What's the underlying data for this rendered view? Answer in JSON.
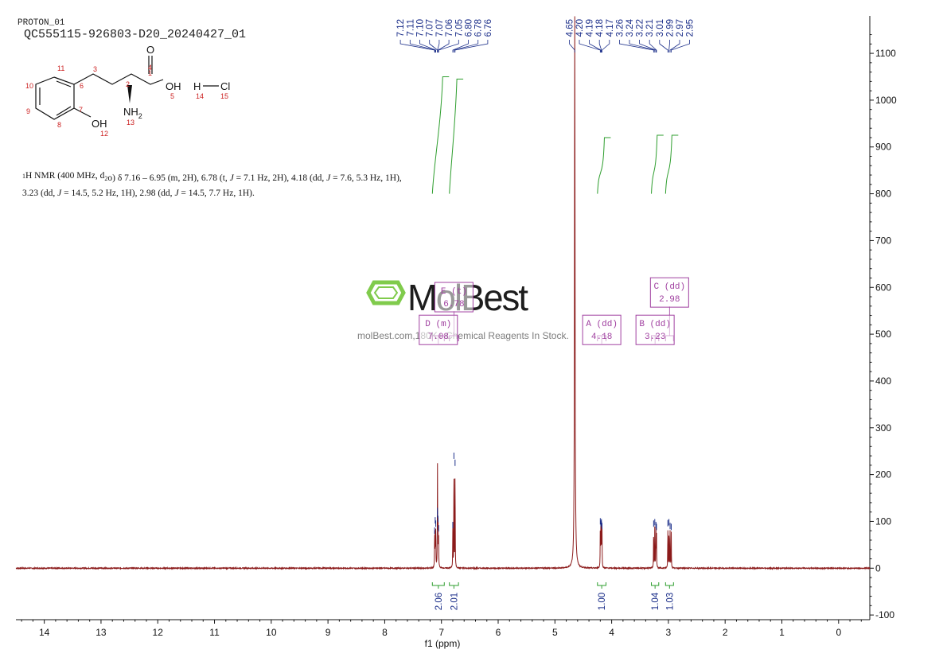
{
  "header": {
    "experiment": "PROTON_01",
    "sample_id": "QC555115-926803-D20_20240427_01"
  },
  "nmr_summary": {
    "nucleus_sup": "1",
    "parts": [
      {
        "t": "H NMR (400 MHz, d",
        "s": "normal"
      },
      {
        "t": "2",
        "s": "sub"
      },
      {
        "t": "o) δ 7.16 – 6.95 (m, 2H), 6.78 (t, ",
        "s": "normal"
      },
      {
        "t": "J",
        "s": "italic"
      },
      {
        "t": " = 7.1 Hz, 2H), 4.18 (dd, ",
        "s": "normal"
      },
      {
        "t": "J",
        "s": "italic"
      },
      {
        "t": " = 7.6, 5.3 Hz, 1H),",
        "s": "normal"
      }
    ],
    "parts2": [
      {
        "t": "3.23 (dd, ",
        "s": "normal"
      },
      {
        "t": "J",
        "s": "italic"
      },
      {
        "t": " = 14.5, 5.2 Hz, 1H), 2.98 (dd, ",
        "s": "normal"
      },
      {
        "t": "J",
        "s": "italic"
      },
      {
        "t": " = 14.5, 7.7 Hz, 1H).",
        "s": "normal"
      }
    ]
  },
  "structure": {
    "atom_numbers": [
      "1",
      "2",
      "3",
      "4",
      "5",
      "6",
      "7",
      "8",
      "9",
      "10",
      "11",
      "12",
      "13",
      "14",
      "15"
    ],
    "labels": {
      "O": "O",
      "OH_acid": "OH",
      "NH2": "NH",
      "NH2_sub": "2",
      "H": "H",
      "Cl": "Cl",
      "OH_phenol": "OH"
    }
  },
  "watermark": {
    "brand": "MolBest",
    "tagline": "molBest.com,180K+ Chemical Reagents In Stock."
  },
  "colors": {
    "spectrum": "#8b1a1a",
    "peak_labels": "#1c2f8a",
    "integrals": "#2e9e2e",
    "multiplets": "#a040a0",
    "atom_numbers": "#cc2222",
    "watermark_green": "#7ac943"
  },
  "chart_data": {
    "type": "line",
    "xlabel": "f1 (ppm)",
    "x_range": [
      14.5,
      -0.55
    ],
    "x_ticks": [
      14,
      13,
      12,
      11,
      10,
      9,
      8,
      7,
      6,
      5,
      4,
      3,
      2,
      1,
      0
    ],
    "y_range": [
      -110,
      1180
    ],
    "y_ticks": [
      -100,
      0,
      100,
      200,
      300,
      400,
      500,
      600,
      700,
      800,
      900,
      1000,
      1100
    ],
    "peak_labels_group1": [
      "7.12",
      "7.11",
      "7.10",
      "7.07",
      "7.07",
      "7.06",
      "7.05",
      "6.80",
      "6.78",
      "6.76"
    ],
    "peak_labels_group2": [
      "4.65",
      "4.20",
      "4.19",
      "4.18",
      "4.17",
      "3.26",
      "3.24",
      "3.22",
      "3.21",
      "3.01",
      "2.99",
      "2.97",
      "2.95"
    ],
    "peaks": [
      {
        "ppm": 7.12,
        "height": 70
      },
      {
        "ppm": 7.11,
        "height": 92
      },
      {
        "ppm": 7.1,
        "height": 85
      },
      {
        "ppm": 7.07,
        "height": 112
      },
      {
        "ppm": 7.07,
        "height": 105
      },
      {
        "ppm": 7.06,
        "height": 95
      },
      {
        "ppm": 7.05,
        "height": 75
      },
      {
        "ppm": 6.8,
        "height": 82
      },
      {
        "ppm": 6.78,
        "height": 230
      },
      {
        "ppm": 6.76,
        "height": 215
      },
      {
        "ppm": 4.65,
        "height": 1180
      },
      {
        "ppm": 4.2,
        "height": 90
      },
      {
        "ppm": 4.19,
        "height": 85
      },
      {
        "ppm": 4.18,
        "height": 88
      },
      {
        "ppm": 4.17,
        "height": 80
      },
      {
        "ppm": 3.26,
        "height": 85
      },
      {
        "ppm": 3.24,
        "height": 88
      },
      {
        "ppm": 3.22,
        "height": 82
      },
      {
        "ppm": 3.21,
        "height": 78
      },
      {
        "ppm": 3.01,
        "height": 86
      },
      {
        "ppm": 2.99,
        "height": 88
      },
      {
        "ppm": 2.97,
        "height": 80
      },
      {
        "ppm": 2.95,
        "height": 78
      }
    ],
    "integrals": [
      {
        "from": 7.16,
        "to": 6.95,
        "value": "2.06",
        "curve_bottom": 800,
        "curve_top": 1050
      },
      {
        "from": 6.86,
        "to": 6.7,
        "value": "2.01",
        "curve_bottom": 800,
        "curve_top": 1045
      },
      {
        "from": 4.25,
        "to": 4.1,
        "value": "1.00",
        "curve_bottom": 800,
        "curve_top": 920
      },
      {
        "from": 3.3,
        "to": 3.17,
        "value": "1.04",
        "curve_bottom": 800,
        "curve_top": 925
      },
      {
        "from": 3.05,
        "to": 2.91,
        "value": "1.03",
        "curve_bottom": 800,
        "curve_top": 925
      }
    ],
    "multiplets": [
      {
        "name": "A (dd)",
        "shift": "4.18",
        "from": 4.25,
        "to": 4.1,
        "label_level": 510
      },
      {
        "name": "B (dd)",
        "shift": "3.23",
        "from": 3.3,
        "to": 3.17,
        "label_level": 510
      },
      {
        "name": "C (dd)",
        "shift": "2.98",
        "from": 3.05,
        "to": 2.91,
        "label_level": 590
      },
      {
        "name": "D (m)",
        "shift": "7.08",
        "from": 7.16,
        "to": 6.95,
        "label_level": 510
      },
      {
        "name": "E (t)",
        "shift": "6.78",
        "from": 6.86,
        "to": 6.7,
        "label_level": 580
      }
    ]
  }
}
